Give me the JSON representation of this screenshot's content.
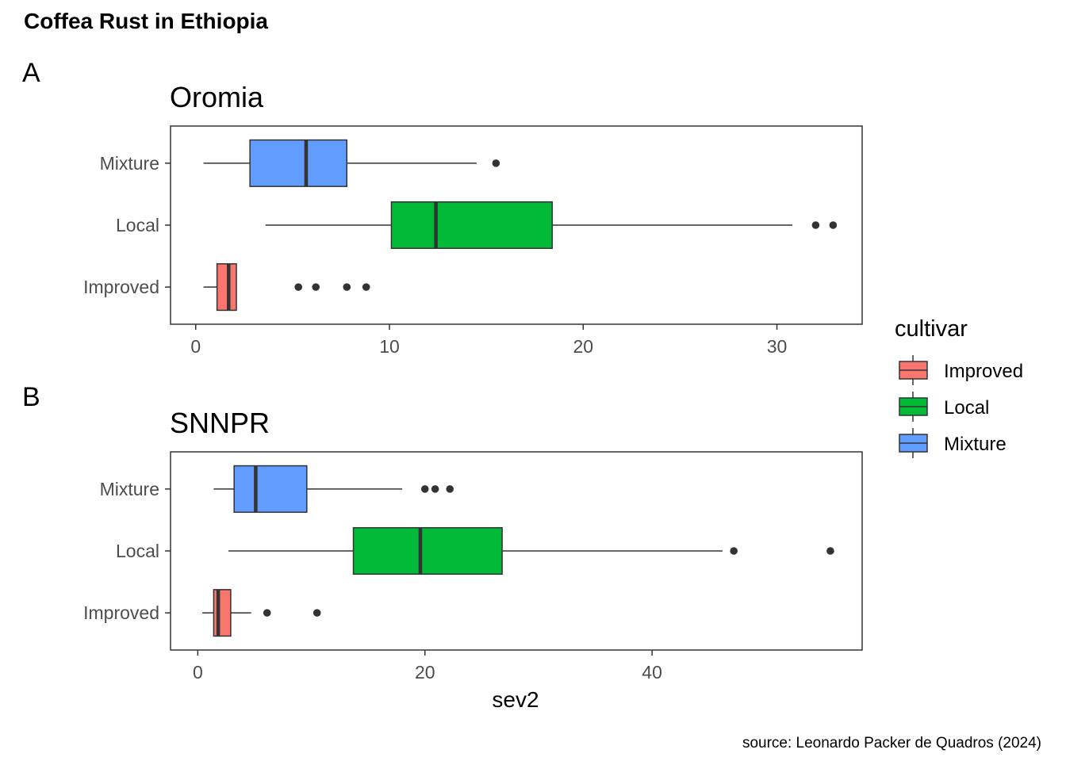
{
  "title": "Coffea Rust in Ethiopia",
  "caption": "source: Leonardo Packer de Quadros (2024)",
  "colors": {
    "Improved": "#F8766D",
    "Local": "#00BA38",
    "Mixture": "#619CFF"
  },
  "legend": {
    "title": "cultivar",
    "items": [
      "Improved",
      "Local",
      "Mixture"
    ]
  },
  "chart_data": [
    {
      "type": "boxplot",
      "tag": "A",
      "title": "Oromia",
      "xlabel": "",
      "ylabel": "",
      "xlim": [
        -1.3,
        34.4
      ],
      "xticks": [
        0,
        10,
        20,
        30
      ],
      "categories": [
        "Improved",
        "Local",
        "Mixture"
      ],
      "boxes": [
        {
          "category": "Improved",
          "whisker_low": 0.4,
          "q1": 1.1,
          "median": 1.7,
          "q3": 2.1,
          "whisker_high": 2.1,
          "outliers": [
            5.3,
            6.2,
            7.8,
            8.8
          ]
        },
        {
          "category": "Local",
          "whisker_low": 3.6,
          "q1": 10.1,
          "median": 12.4,
          "q3": 18.4,
          "whisker_high": 30.8,
          "outliers": [
            32.0,
            32.9
          ]
        },
        {
          "category": "Mixture",
          "whisker_low": 0.4,
          "q1": 2.8,
          "median": 5.7,
          "q3": 7.8,
          "whisker_high": 14.5,
          "outliers": [
            15.5
          ]
        }
      ]
    },
    {
      "type": "boxplot",
      "tag": "B",
      "title": "SNNPR",
      "xlabel": "sev2",
      "ylabel": "",
      "xlim": [
        -2.4,
        58.5
      ],
      "xticks": [
        0,
        20,
        40
      ],
      "categories": [
        "Improved",
        "Local",
        "Mixture"
      ],
      "boxes": [
        {
          "category": "Improved",
          "whisker_low": 0.4,
          "q1": 1.4,
          "median": 1.8,
          "q3": 2.9,
          "whisker_high": 4.7,
          "outliers": [
            6.1,
            10.5
          ]
        },
        {
          "category": "Local",
          "whisker_low": 2.7,
          "q1": 13.7,
          "median": 19.6,
          "q3": 26.8,
          "whisker_high": 46.2,
          "outliers": [
            47.2,
            55.7
          ]
        },
        {
          "category": "Mixture",
          "whisker_low": 1.4,
          "q1": 3.2,
          "median": 5.1,
          "q3": 9.6,
          "whisker_high": 18.0,
          "outliers": [
            20.0,
            20.9,
            22.2
          ]
        }
      ]
    }
  ]
}
